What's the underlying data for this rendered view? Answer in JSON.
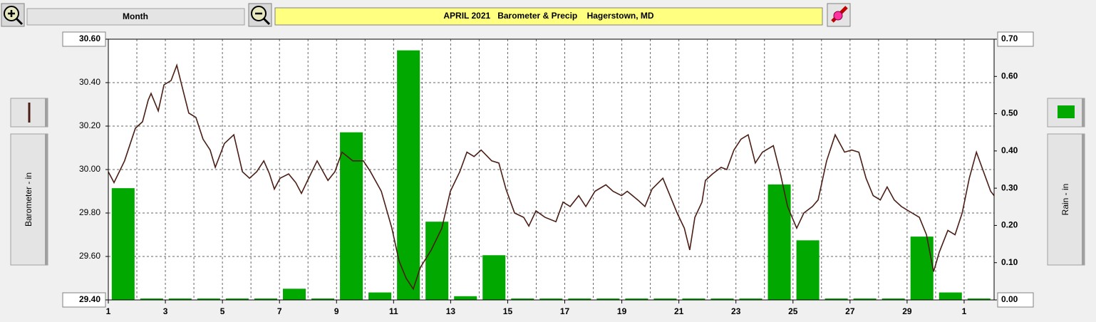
{
  "ui": {
    "period_button": "Month"
  },
  "chart_data": {
    "type": "combo",
    "title": "APRIL 2021   Barometer & Precip    Hagerstown, MD",
    "xlim": [
      1,
      32.05
    ],
    "xticks": [
      1,
      3,
      5,
      7,
      9,
      11,
      13,
      15,
      17,
      19,
      21,
      23,
      25,
      27,
      29,
      {
        "value": 31,
        "label": "1"
      }
    ],
    "xgrid": [
      2,
      3,
      4,
      5,
      6,
      7,
      8,
      9,
      10,
      11,
      12,
      13,
      14,
      15,
      16,
      17,
      18,
      19,
      20,
      21,
      22,
      23,
      24,
      25,
      26,
      27,
      28,
      29,
      30,
      31
    ],
    "ylim": [
      29.4,
      30.6
    ],
    "yticks": [
      {
        "value": 29.4,
        "label": "29.40"
      },
      {
        "value": 29.6,
        "label": "29.60"
      },
      {
        "value": 29.8,
        "label": "29.80"
      },
      {
        "value": 30.0,
        "label": "30.00"
      },
      {
        "value": 30.2,
        "label": "30.20"
      },
      {
        "value": 30.4,
        "label": "30.40"
      },
      {
        "value": 30.6,
        "label": "30.60"
      }
    ],
    "y2lim": [
      0,
      0.7
    ],
    "y2ticks": [
      {
        "value": 0,
        "label": "0.00"
      },
      {
        "value": 0.1,
        "label": "0.10"
      },
      {
        "value": 0.2,
        "label": "0.20"
      },
      {
        "value": 0.3,
        "label": "0.30"
      },
      {
        "value": 0.4,
        "label": "0.40"
      },
      {
        "value": 0.5,
        "label": "0.50"
      },
      {
        "value": 0.6,
        "label": "0.60"
      },
      {
        "value": 0.7,
        "label": "0.70"
      }
    ],
    "grid": true,
    "series": [
      {
        "name": "Barometer - in",
        "type": "line",
        "color": "#4a1e14",
        "x": [
          1.0,
          1.2,
          1.57,
          1.95,
          2.2,
          2.4,
          2.5,
          2.75,
          2.95,
          3.2,
          3.4,
          3.57,
          3.82,
          4.07,
          4.32,
          4.57,
          4.75,
          5.07,
          5.4,
          5.7,
          5.95,
          6.2,
          6.45,
          6.65,
          6.82,
          7.02,
          7.32,
          7.57,
          7.77,
          7.95,
          8.32,
          8.7,
          8.94,
          9.19,
          9.57,
          9.94,
          10.19,
          10.57,
          10.94,
          11.19,
          11.44,
          11.69,
          11.94,
          12.32,
          12.69,
          12.99,
          13.32,
          13.57,
          13.82,
          14.07,
          14.44,
          14.69,
          14.94,
          15.24,
          15.56,
          15.74,
          15.99,
          16.31,
          16.69,
          16.94,
          17.19,
          17.49,
          17.74,
          18.06,
          18.44,
          18.69,
          18.99,
          19.19,
          19.56,
          19.81,
          20.06,
          20.44,
          20.69,
          20.94,
          21.19,
          21.38,
          21.56,
          21.81,
          21.93,
          22.18,
          22.48,
          22.68,
          22.93,
          23.18,
          23.43,
          23.68,
          23.93,
          24.31,
          24.56,
          24.81,
          25.13,
          25.38,
          25.68,
          25.88,
          26.18,
          26.48,
          26.81,
          27.06,
          27.31,
          27.56,
          27.81,
          28.06,
          28.3,
          28.55,
          28.8,
          29.05,
          29.43,
          29.68,
          29.93,
          30.13,
          30.43,
          30.68,
          30.93,
          31.18,
          31.43,
          31.68,
          31.93,
          32.05
        ],
        "values": [
          29.99,
          29.94,
          30.04,
          30.19,
          30.22,
          30.32,
          30.35,
          30.27,
          30.39,
          30.41,
          30.48,
          30.39,
          30.26,
          30.24,
          30.14,
          30.09,
          30.01,
          30.12,
          30.16,
          29.99,
          29.96,
          29.99,
          30.04,
          29.98,
          29.91,
          29.96,
          29.98,
          29.94,
          29.89,
          29.94,
          30.04,
          29.95,
          29.99,
          30.08,
          30.04,
          30.04,
          29.99,
          29.9,
          29.73,
          29.58,
          29.5,
          29.45,
          29.55,
          29.63,
          29.73,
          29.9,
          29.99,
          30.08,
          30.06,
          30.09,
          30.04,
          30.03,
          29.91,
          29.8,
          29.78,
          29.74,
          29.81,
          29.78,
          29.76,
          29.85,
          29.83,
          29.88,
          29.83,
          29.9,
          29.93,
          29.9,
          29.88,
          29.9,
          29.86,
          29.83,
          29.91,
          29.96,
          29.88,
          29.8,
          29.73,
          29.63,
          29.78,
          29.85,
          29.95,
          29.98,
          30.01,
          30.0,
          30.09,
          30.14,
          30.16,
          30.03,
          30.08,
          30.11,
          29.98,
          29.83,
          29.73,
          29.8,
          29.83,
          29.86,
          30.04,
          30.16,
          30.08,
          30.09,
          30.08,
          29.96,
          29.88,
          29.86,
          29.92,
          29.86,
          29.83,
          29.81,
          29.78,
          29.7,
          29.53,
          29.62,
          29.72,
          29.7,
          29.8,
          29.96,
          30.08,
          29.99,
          29.9,
          29.88
        ]
      },
      {
        "name": "Rain - in",
        "type": "bar",
        "axis": "y2",
        "color": "#00a800",
        "x": [
          1,
          2,
          3,
          4,
          5,
          6,
          7,
          8,
          9,
          10,
          11,
          12,
          13,
          14,
          15,
          16,
          17,
          18,
          19,
          20,
          21,
          22,
          23,
          24,
          25,
          26,
          27,
          28,
          29,
          30,
          31
        ],
        "values": [
          0.3,
          0,
          0,
          0,
          0,
          0,
          0.03,
          0,
          0.45,
          0.02,
          0.67,
          0.21,
          0.01,
          0.12,
          0,
          0,
          0,
          0,
          0,
          0,
          0,
          0,
          0,
          0.31,
          0.16,
          0,
          0,
          0,
          0.17,
          0.02,
          0
        ]
      }
    ]
  }
}
